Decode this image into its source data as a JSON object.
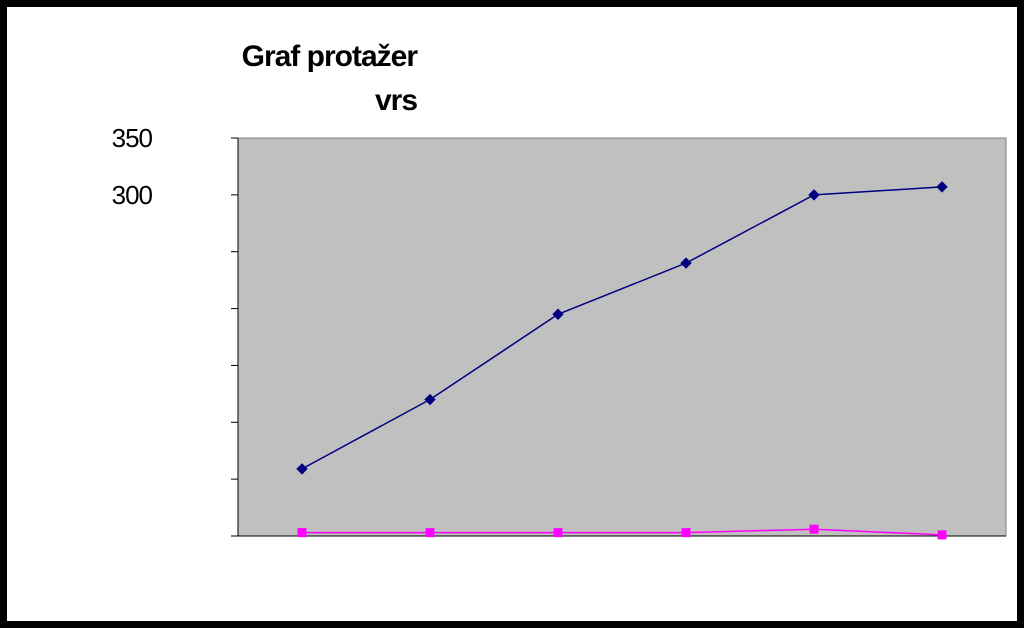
{
  "chart_data": {
    "type": "line",
    "title_lines": [
      "Graf protažer",
      "vrs"
    ],
    "xlabel": "",
    "ylabel": "",
    "ylim": [
      0,
      350
    ],
    "y_tick_labels": [
      {
        "value": 350,
        "label": "350"
      },
      {
        "value": 300,
        "label": "300"
      }
    ],
    "y_tick_marks": [
      0,
      50,
      100,
      150,
      200,
      250,
      300,
      350
    ],
    "grid": false,
    "legend": "none",
    "plot_background": "#c0c0c0",
    "x": [
      1,
      2,
      3,
      4,
      5,
      6
    ],
    "series": [
      {
        "color": "#000080",
        "marker": "diamond",
        "values": [
          59,
          120,
          195,
          240,
          300,
          307
        ]
      },
      {
        "color": "#ff00ff",
        "marker": "square",
        "values": [
          3,
          3,
          3,
          3,
          6,
          1
        ]
      }
    ]
  }
}
